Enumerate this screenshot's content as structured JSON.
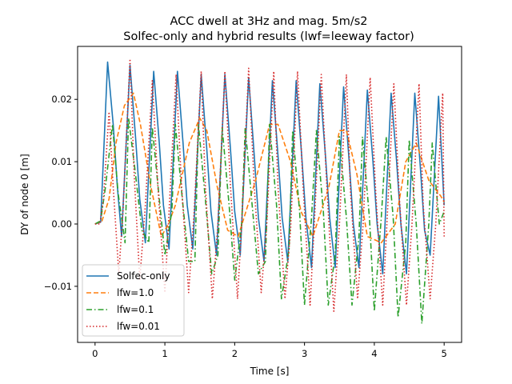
{
  "chart_data": {
    "type": "line",
    "title": [
      "ACC dwell at 3Hz and mag. 5m/s2",
      "Solfec-only and hybrid results (lwf=leeway factor)"
    ],
    "xlabel": "Time [s]",
    "ylabel": "DY of node 0 [m]",
    "xlim": [
      -0.25,
      5.25
    ],
    "ylim": [
      -0.019,
      0.0285
    ],
    "xticks": [
      0,
      1,
      2,
      3,
      4,
      5
    ],
    "xtick_labels": [
      "0",
      "1",
      "2",
      "3",
      "4",
      "5"
    ],
    "yticks": [
      -0.01,
      0.0,
      0.01,
      0.02
    ],
    "ytick_labels": [
      "−0.01",
      "0.00",
      "0.01",
      "0.02"
    ],
    "grid": false,
    "legend_position": "lower-left",
    "series": [
      {
        "name": "Solfec-only",
        "color": "#1f77b4",
        "dash": "solid",
        "x": [
          0.0,
          0.08,
          0.18,
          0.26,
          0.32,
          0.38,
          0.5,
          0.58,
          0.64,
          0.72,
          0.84,
          0.92,
          0.98,
          1.06,
          1.18,
          1.26,
          1.32,
          1.4,
          1.52,
          1.6,
          1.66,
          1.74,
          1.86,
          1.94,
          2.0,
          2.08,
          2.2,
          2.28,
          2.34,
          2.42,
          2.54,
          2.62,
          2.68,
          2.76,
          2.88,
          2.96,
          3.02,
          3.1,
          3.22,
          3.3,
          3.36,
          3.44,
          3.56,
          3.64,
          3.7,
          3.78,
          3.9,
          3.98,
          4.04,
          4.12,
          4.24,
          4.32,
          4.38,
          4.46,
          4.58,
          4.66,
          4.72,
          4.8,
          4.92,
          5.0
        ],
        "y": [
          0.0,
          0.0003,
          0.026,
          0.016,
          0.006,
          -0.002,
          0.0255,
          0.014,
          0.004,
          -0.003,
          0.0245,
          0.013,
          0.003,
          -0.004,
          0.0245,
          0.013,
          0.003,
          -0.004,
          0.024,
          0.012,
          0.002,
          -0.005,
          0.024,
          0.012,
          0.002,
          -0.005,
          0.0235,
          0.011,
          0.001,
          -0.006,
          0.023,
          0.011,
          0.001,
          -0.006,
          0.023,
          0.011,
          0.001,
          -0.007,
          0.0225,
          0.011,
          0.001,
          -0.007,
          0.022,
          0.01,
          0.0,
          -0.007,
          0.0215,
          0.01,
          0.0,
          -0.008,
          0.021,
          0.01,
          0.0,
          -0.008,
          0.021,
          0.009,
          -0.001,
          -0.005,
          0.0205,
          0.003
        ]
      },
      {
        "name": "lfw=1.0",
        "color": "#ff7f0e",
        "dash": "6,3",
        "x": [
          0.0,
          0.1,
          0.2,
          0.3,
          0.42,
          0.55,
          0.65,
          0.8,
          0.95,
          1.05,
          1.15,
          1.35,
          1.5,
          1.6,
          1.75,
          1.9,
          2.05,
          2.3,
          2.5,
          2.62,
          2.8,
          2.95,
          3.12,
          3.35,
          3.5,
          3.6,
          3.75,
          3.9,
          4.1,
          4.3,
          4.45,
          4.6,
          4.78,
          4.95,
          5.0
        ],
        "y": [
          0.0,
          0.0005,
          0.004,
          0.013,
          0.019,
          0.021,
          0.016,
          0.006,
          -0.002,
          0.0,
          0.003,
          0.013,
          0.017,
          0.015,
          0.006,
          -0.001,
          -0.002,
          0.007,
          0.016,
          0.016,
          0.01,
          0.002,
          -0.002,
          0.006,
          0.015,
          0.015,
          0.008,
          -0.002,
          -0.003,
          0.0,
          0.01,
          0.013,
          0.007,
          0.0045,
          0.0035
        ]
      },
      {
        "name": "lfw=0.1",
        "color": "#2ca02c",
        "dash": "7,3,1.5,3",
        "x": [
          0.0,
          0.08,
          0.15,
          0.25,
          0.33,
          0.43,
          0.48,
          0.58,
          0.67,
          0.77,
          0.82,
          0.92,
          1.0,
          1.1,
          1.15,
          1.25,
          1.34,
          1.43,
          1.48,
          1.58,
          1.67,
          1.76,
          1.82,
          1.92,
          2.0,
          2.1,
          2.15,
          2.25,
          2.34,
          2.44,
          2.5,
          2.6,
          2.67,
          2.78,
          2.83,
          2.93,
          3.0,
          3.1,
          3.17,
          3.27,
          3.34,
          3.44,
          3.5,
          3.6,
          3.68,
          3.78,
          3.83,
          3.93,
          4.0,
          4.1,
          4.17,
          4.27,
          4.34,
          4.45,
          4.5,
          4.6,
          4.68,
          4.78,
          4.83,
          4.93,
          5.0
        ],
        "y": [
          0.0,
          0.0005,
          0.006,
          0.016,
          0.005,
          -0.003,
          0.017,
          0.008,
          -0.001,
          -0.003,
          0.0155,
          0.004,
          -0.005,
          0.002,
          0.016,
          0.004,
          -0.006,
          -0.006,
          0.016,
          0.004,
          -0.008,
          -0.005,
          0.0155,
          0.003,
          -0.009,
          0.0,
          0.0155,
          0.003,
          -0.008,
          -0.006,
          0.016,
          0.003,
          -0.012,
          -0.004,
          0.015,
          0.002,
          -0.013,
          0.001,
          0.015,
          0.002,
          -0.013,
          -0.005,
          0.014,
          0.001,
          -0.013,
          -0.002,
          0.014,
          0.001,
          -0.014,
          0.001,
          0.014,
          0.001,
          -0.015,
          -0.003,
          0.0135,
          0.0,
          -0.016,
          0.0,
          0.013,
          0.0,
          0.002
        ]
      },
      {
        "name": "lfw=0.01",
        "color": "#d62728",
        "dash": "1.5,2.5",
        "x": [
          0.0,
          0.07,
          0.12,
          0.2,
          0.26,
          0.34,
          0.4,
          0.5,
          0.56,
          0.64,
          0.72,
          0.82,
          0.9,
          1.0,
          1.06,
          1.16,
          1.24,
          1.34,
          1.42,
          1.52,
          1.58,
          1.68,
          1.76,
          1.86,
          1.94,
          2.04,
          2.1,
          2.2,
          2.28,
          2.38,
          2.46,
          2.56,
          2.62,
          2.72,
          2.8,
          2.9,
          2.98,
          3.08,
          3.14,
          3.24,
          3.32,
          3.42,
          3.5,
          3.6,
          3.66,
          3.76,
          3.84,
          3.94,
          4.02,
          4.12,
          4.18,
          4.28,
          4.36,
          4.46,
          4.54,
          4.64,
          4.7,
          4.8,
          4.88,
          4.98,
          5.0
        ],
        "y": [
          0.0,
          0.0,
          0.004,
          0.018,
          0.006,
          -0.008,
          0.002,
          0.0265,
          0.008,
          -0.009,
          0.003,
          0.023,
          0.006,
          -0.011,
          0.002,
          0.024,
          0.006,
          -0.011,
          0.002,
          0.0245,
          0.006,
          -0.012,
          0.0,
          0.0245,
          0.006,
          -0.012,
          0.0,
          0.025,
          0.006,
          -0.011,
          0.0,
          0.0245,
          0.006,
          -0.012,
          -0.001,
          0.0245,
          0.006,
          -0.013,
          0.0,
          0.024,
          0.006,
          -0.014,
          0.0,
          0.024,
          0.005,
          -0.012,
          0.0,
          0.0235,
          0.005,
          -0.013,
          0.0,
          0.0225,
          0.004,
          -0.013,
          0.0,
          0.0225,
          0.003,
          -0.012,
          0.0,
          0.021,
          -0.002
        ]
      }
    ]
  }
}
